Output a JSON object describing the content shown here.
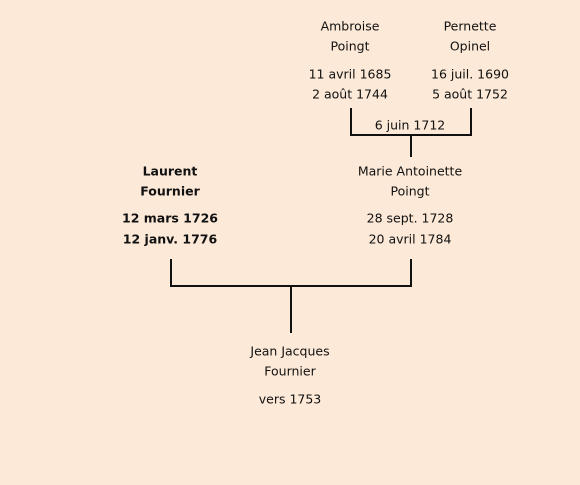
{
  "persons": [
    {
      "name": [
        "Ambroise",
        "Poingt"
      ],
      "dates": [
        "11 avril 1685",
        "2 août 1744"
      ]
    },
    {
      "name": [
        "Pernette",
        "Opinel"
      ],
      "dates": [
        "16 juil. 1690",
        "5 août 1752"
      ]
    },
    {
      "name": [
        "Laurent",
        "Fournier"
      ],
      "dates": [
        "12 mars 1726",
        "12 janv. 1776"
      ]
    },
    {
      "name": [
        "Marie Antoinette",
        "Poingt"
      ],
      "dates": [
        "28 sept. 1728",
        "20 avril 1784"
      ]
    },
    {
      "name": [
        "Jean Jacques",
        "Fournier"
      ],
      "dates": [
        "vers 1753"
      ]
    }
  ],
  "marriages": [
    {
      "date": "6 juin 1712"
    }
  ]
}
